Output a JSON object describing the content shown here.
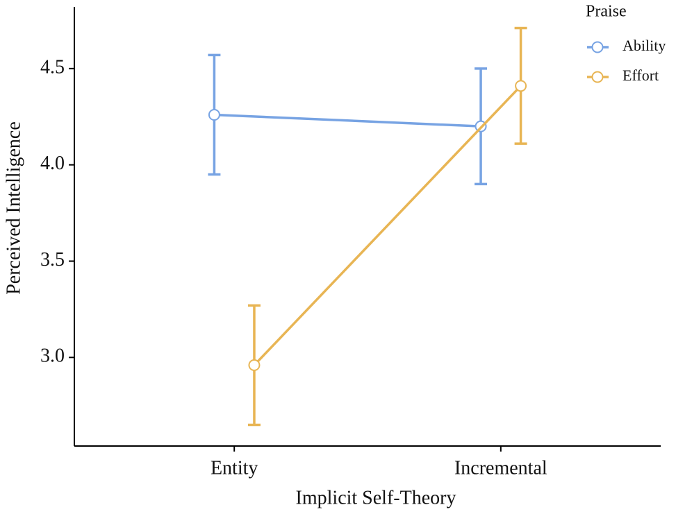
{
  "chart_data": {
    "type": "line",
    "x_label": "Implicit Self-Theory",
    "y_label": "Perceived Intelligence",
    "legend_title": "Praise",
    "legend_position": "top-right",
    "categories": [
      "Entity",
      "Incremental"
    ],
    "series": [
      {
        "name": "Ability",
        "color": "#77a3e3",
        "values": [
          4.26,
          4.2
        ],
        "errors": [
          0.31,
          0.3
        ]
      },
      {
        "name": "Effort",
        "color": "#e8b554",
        "values": [
          2.96,
          4.41
        ],
        "errors": [
          0.31,
          0.3
        ]
      }
    ],
    "ylim": [
      2.54,
      4.82
    ],
    "yticks": [
      {
        "value": 3,
        "label": "3.0"
      },
      3.5,
      {
        "value": 4,
        "label": "4.0"
      },
      4.5
    ],
    "grid": false
  }
}
